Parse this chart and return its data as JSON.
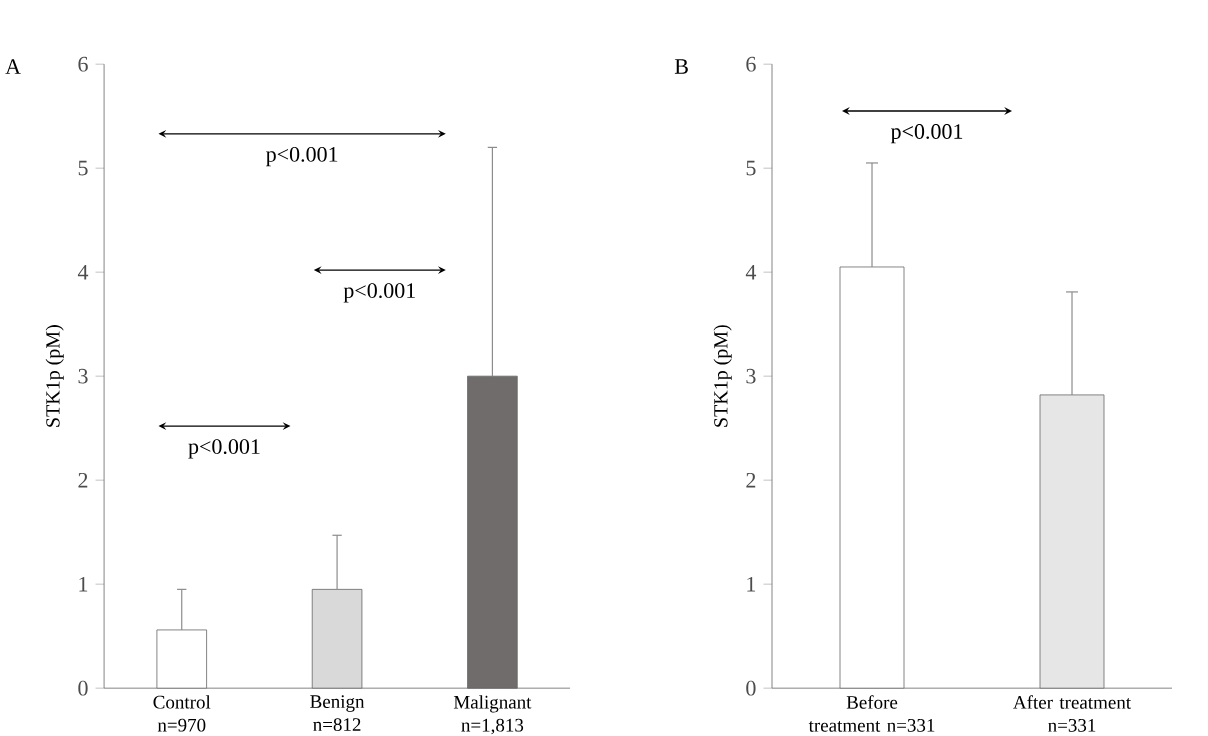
{
  "chart_data": [
    {
      "type": "bar",
      "title": "A",
      "ylabel": "STK1p (pM)",
      "categories": [
        "Control n=970",
        "Benign n=812",
        "Malignant n=1,813"
      ],
      "values": [
        0.56,
        0.95,
        3.0
      ],
      "colors": [
        "#ffffff",
        "#d9d9d9",
        "#716c6c"
      ],
      "errors": [
        [
          0.56,
          0.95
        ],
        [
          0.95,
          1.47
        ],
        [
          3.0,
          5.2
        ]
      ],
      "ylim": [
        0,
        6
      ],
      "yticks": [
        0,
        1,
        2,
        3,
        4,
        5,
        6
      ],
      "grid": false,
      "annotations": [
        "p<0.001",
        "p<0.001",
        "p<0.001"
      ]
    },
    {
      "type": "bar",
      "title": "B",
      "ylabel": "STK1p (pM)",
      "categories": [
        "Before treatment n=331",
        "After treatment n=331"
      ],
      "values": [
        4.05,
        2.82
      ],
      "colors": [
        "#ffffff",
        "#e6e6e6"
      ],
      "errors": [
        [
          4.05,
          5.05
        ],
        [
          2.82,
          3.81
        ]
      ],
      "ylim": [
        0,
        6
      ],
      "yticks": [
        0,
        1,
        2,
        3,
        4,
        5,
        6
      ],
      "grid": false,
      "annotations": [
        "p<0.001"
      ]
    }
  ]
}
